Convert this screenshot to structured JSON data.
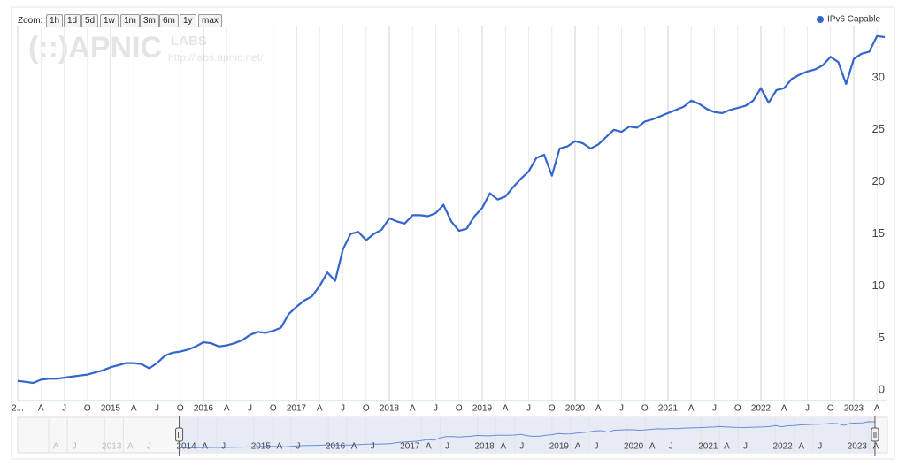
{
  "chart_data": {
    "type": "line",
    "zoom": {
      "label": "Zoom:",
      "buttons": [
        "1h",
        "1d",
        "5d",
        "1w",
        "1m",
        "3m",
        "6m",
        "1y",
        "max"
      ]
    },
    "watermark": {
      "logo": "(::)APNIC",
      "labs": "LABS",
      "url": "http://labs.apnic.net/"
    },
    "legend": "top-right",
    "grid": true,
    "x": [
      "2014-01",
      "2014-02",
      "2014-03",
      "2014-04",
      "2014-05",
      "2014-06",
      "2014-07",
      "2014-08",
      "2014-09",
      "2014-10",
      "2014-11",
      "2014-12",
      "2015-01",
      "2015-02",
      "2015-03",
      "2015-04",
      "2015-05",
      "2015-06",
      "2015-07",
      "2015-08",
      "2015-09",
      "2015-10",
      "2015-11",
      "2015-12",
      "2016-01",
      "2016-02",
      "2016-03",
      "2016-04",
      "2016-05",
      "2016-06",
      "2016-07",
      "2016-08",
      "2016-09",
      "2016-10",
      "2016-11",
      "2016-12",
      "2017-01",
      "2017-02",
      "2017-03",
      "2017-04",
      "2017-05",
      "2017-06",
      "2017-07",
      "2017-08",
      "2017-09",
      "2017-10",
      "2017-11",
      "2017-12",
      "2018-01",
      "2018-02",
      "2018-03",
      "2018-04",
      "2018-05",
      "2018-06",
      "2018-07",
      "2018-08",
      "2018-09",
      "2018-10",
      "2018-11",
      "2018-12",
      "2019-01",
      "2019-02",
      "2019-03",
      "2019-04",
      "2019-05",
      "2019-06",
      "2019-07",
      "2019-08",
      "2019-09",
      "2019-10",
      "2019-11",
      "2019-12",
      "2020-01",
      "2020-02",
      "2020-03",
      "2020-04",
      "2020-05",
      "2020-06",
      "2020-07",
      "2020-08",
      "2020-09",
      "2020-10",
      "2020-11",
      "2020-12",
      "2021-01",
      "2021-02",
      "2021-03",
      "2021-04",
      "2021-05",
      "2021-06",
      "2021-07",
      "2021-08",
      "2021-09",
      "2021-10",
      "2021-11",
      "2021-12",
      "2022-01",
      "2022-02",
      "2022-03",
      "2022-04",
      "2022-05",
      "2022-06",
      "2022-07",
      "2022-08",
      "2022-09",
      "2022-10",
      "2022-11",
      "2022-12",
      "2023-01",
      "2023-02",
      "2023-03",
      "2023-04",
      "2023-05"
    ],
    "series": [
      {
        "name": "IPv6 Capable",
        "color": "#3366cc",
        "values": [
          0.9,
          0.8,
          0.7,
          1.0,
          1.1,
          1.1,
          1.2,
          1.3,
          1.4,
          1.5,
          1.7,
          1.9,
          2.2,
          2.4,
          2.6,
          2.6,
          2.5,
          2.1,
          2.6,
          3.3,
          3.6,
          3.7,
          3.9,
          4.2,
          4.6,
          4.5,
          4.2,
          4.3,
          4.5,
          4.8,
          5.3,
          5.6,
          5.5,
          5.7,
          6.0,
          7.3,
          8.0,
          8.6,
          9.0,
          10.0,
          11.3,
          10.5,
          13.5,
          15.0,
          15.2,
          14.4,
          15.0,
          15.4,
          16.5,
          16.2,
          16.0,
          16.8,
          16.8,
          16.7,
          17.0,
          17.8,
          16.2,
          15.3,
          15.5,
          16.7,
          17.5,
          18.9,
          18.3,
          18.6,
          19.5,
          20.3,
          21.0,
          22.3,
          22.6,
          20.6,
          23.2,
          23.4,
          23.9,
          23.7,
          23.2,
          23.6,
          24.3,
          25.0,
          24.8,
          25.3,
          25.2,
          25.8,
          26.0,
          26.3,
          26.6,
          26.9,
          27.2,
          27.8,
          27.5,
          27.0,
          26.7,
          26.6,
          26.9,
          27.1,
          27.3,
          27.8,
          29.0,
          27.6,
          28.8,
          29.0,
          29.9,
          30.3,
          30.6,
          30.8,
          31.2,
          32.0,
          31.5,
          29.4,
          31.8,
          32.3,
          32.5,
          34.0,
          33.9
        ]
      }
    ],
    "xlim": [
      "2014-01",
      "2023-05"
    ],
    "ylim": [
      -1,
      35
    ],
    "yticks": [
      0,
      5,
      10,
      15,
      20,
      25,
      30
    ],
    "xticks": [
      {
        "value": "2014-01",
        "label": "2..."
      },
      {
        "value": "2014-04",
        "label": "A"
      },
      {
        "value": "2014-07",
        "label": "J"
      },
      {
        "value": "2014-10",
        "label": "O"
      },
      {
        "value": "2015-01",
        "label": "2015"
      },
      {
        "value": "2015-04",
        "label": "A"
      },
      {
        "value": "2015-07",
        "label": "J"
      },
      {
        "value": "2015-10",
        "label": "O"
      },
      {
        "value": "2016-01",
        "label": "2016"
      },
      {
        "value": "2016-04",
        "label": "A"
      },
      {
        "value": "2016-07",
        "label": "J"
      },
      {
        "value": "2016-10",
        "label": "O"
      },
      {
        "value": "2017-01",
        "label": "2017"
      },
      {
        "value": "2017-04",
        "label": "A"
      },
      {
        "value": "2017-07",
        "label": "J"
      },
      {
        "value": "2017-10",
        "label": "O"
      },
      {
        "value": "2018-01",
        "label": "2018"
      },
      {
        "value": "2018-04",
        "label": "A"
      },
      {
        "value": "2018-07",
        "label": "J"
      },
      {
        "value": "2018-10",
        "label": "O"
      },
      {
        "value": "2019-01",
        "label": "2019"
      },
      {
        "value": "2019-04",
        "label": "A"
      },
      {
        "value": "2019-07",
        "label": "J"
      },
      {
        "value": "2019-10",
        "label": "O"
      },
      {
        "value": "2020-01",
        "label": "2020"
      },
      {
        "value": "2020-04",
        "label": "A"
      },
      {
        "value": "2020-07",
        "label": "J"
      },
      {
        "value": "2020-10",
        "label": "O"
      },
      {
        "value": "2021-01",
        "label": "2021"
      },
      {
        "value": "2021-04",
        "label": "A"
      },
      {
        "value": "2021-07",
        "label": "J"
      },
      {
        "value": "2021-10",
        "label": "O"
      },
      {
        "value": "2022-01",
        "label": "2022"
      },
      {
        "value": "2022-04",
        "label": "A"
      },
      {
        "value": "2022-07",
        "label": "J"
      },
      {
        "value": "2022-10",
        "label": "O"
      },
      {
        "value": "2023-01",
        "label": "2023"
      },
      {
        "value": "2023-04",
        "label": "A"
      }
    ],
    "navigator": {
      "xlim": [
        "2011-11",
        "2023-07"
      ],
      "selection": [
        "2014-01",
        "2023-05"
      ],
      "xticks": [
        {
          "value": "2012-04",
          "label": "A"
        },
        {
          "value": "2012-07",
          "label": "J"
        },
        {
          "value": "2013-01",
          "label": "2013"
        },
        {
          "value": "2013-04",
          "label": "A"
        },
        {
          "value": "2013-07",
          "label": "J"
        },
        {
          "value": "2014-01",
          "label": "2014"
        },
        {
          "value": "2014-04",
          "label": "A"
        },
        {
          "value": "2014-07",
          "label": "J"
        },
        {
          "value": "2015-01",
          "label": "2015"
        },
        {
          "value": "2015-04",
          "label": "A"
        },
        {
          "value": "2015-07",
          "label": "J"
        },
        {
          "value": "2016-01",
          "label": "2016"
        },
        {
          "value": "2016-04",
          "label": "A"
        },
        {
          "value": "2016-07",
          "label": "J"
        },
        {
          "value": "2017-01",
          "label": "2017"
        },
        {
          "value": "2017-04",
          "label": "A"
        },
        {
          "value": "2017-07",
          "label": "J"
        },
        {
          "value": "2018-01",
          "label": "2018"
        },
        {
          "value": "2018-04",
          "label": "A"
        },
        {
          "value": "2018-07",
          "label": "J"
        },
        {
          "value": "2019-01",
          "label": "2019"
        },
        {
          "value": "2019-04",
          "label": "A"
        },
        {
          "value": "2019-07",
          "label": "J"
        },
        {
          "value": "2020-01",
          "label": "2020"
        },
        {
          "value": "2020-04",
          "label": "A"
        },
        {
          "value": "2020-07",
          "label": "J"
        },
        {
          "value": "2021-01",
          "label": "2021"
        },
        {
          "value": "2021-04",
          "label": "A"
        },
        {
          "value": "2021-07",
          "label": "J"
        },
        {
          "value": "2022-01",
          "label": "2022"
        },
        {
          "value": "2022-04",
          "label": "A"
        },
        {
          "value": "2022-07",
          "label": "J"
        },
        {
          "value": "2023-01",
          "label": "2023"
        },
        {
          "value": "2023-04",
          "label": "A"
        }
      ]
    }
  }
}
